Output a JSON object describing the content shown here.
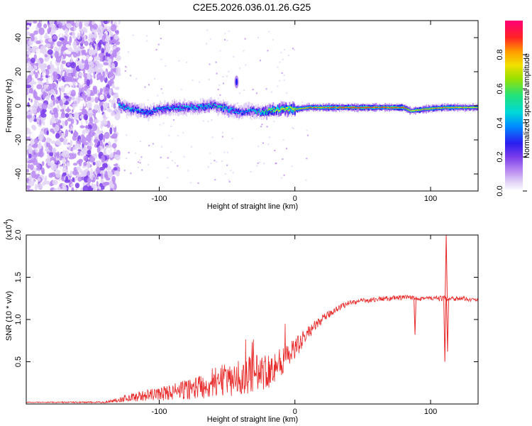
{
  "title": "C2E5.2026.036.01.26.G25",
  "colors": {
    "snr_line": "#e82a2a",
    "axis": "#000000",
    "colormap": [
      "#ffffff",
      "#d8c8f2",
      "#9a5cf0",
      "#6a1ee6",
      "#1f2bff",
      "#00c8e0",
      "#22e27a",
      "#d8e000",
      "#ff9a00",
      "#ff2424",
      "#ff0077"
    ]
  },
  "chart_data": [
    {
      "type": "heatmap",
      "xlabel": "Height of straight line (km)",
      "ylabel": "Frequency (Hz)",
      "xlim": [
        -198,
        135
      ],
      "ylim": [
        -50,
        50
      ],
      "xticks": [
        -100,
        0,
        100
      ],
      "xtick_labels": [
        "-100",
        "0",
        "100"
      ],
      "yticks": [
        -40,
        -20,
        0,
        20,
        40
      ],
      "ytick_labels": [
        "-40",
        "-20",
        "0",
        "20",
        "40"
      ],
      "colorbar": {
        "label": "Normalized spectral amplitude",
        "range": [
          0,
          1
        ],
        "ticks": [
          0.0,
          0.2,
          0.4,
          0.6,
          0.8
        ],
        "tick_labels": [
          "0.0",
          "0.2",
          "0.4",
          "0.6",
          "0.8"
        ]
      },
      "noise_region_x": [
        -198,
        -130
      ],
      "signal_track": {
        "x": [
          -130,
          -120,
          -110,
          -100,
          -90,
          -80,
          -70,
          -60,
          -50,
          -45,
          -40,
          -35,
          -30,
          -25,
          -20,
          -10,
          0,
          10,
          20,
          40,
          60,
          80,
          85,
          95,
          110,
          120,
          135
        ],
        "freq_hz": [
          0,
          -2,
          -4,
          -2,
          -1,
          -1,
          -0.5,
          0,
          -2,
          -3,
          -4,
          -3,
          -3,
          -4,
          -3,
          -2,
          -2,
          -1,
          -1,
          -1,
          -1,
          -1,
          -3,
          -2,
          -1,
          -1,
          -1
        ],
        "amplitude": [
          0.55,
          0.5,
          0.45,
          0.5,
          0.5,
          0.55,
          0.55,
          0.55,
          0.6,
          0.5,
          0.45,
          0.5,
          0.55,
          0.6,
          0.7,
          0.8,
          0.85,
          0.9,
          0.9,
          0.95,
          0.95,
          0.95,
          0.8,
          0.9,
          0.9,
          0.85,
          0.8
        ]
      },
      "artifact": {
        "x": -43,
        "freq_hz": 14,
        "amplitude": 0.35
      }
    },
    {
      "type": "line",
      "xlabel": "Height of straight line (km)",
      "ylabel": "SNR (10 * v/v)",
      "y_scale_label": "(x10",
      "y_scale_exponent": "4",
      "xlim": [
        -198,
        135
      ],
      "ylim": [
        0,
        2.0
      ],
      "xticks": [
        -100,
        0,
        100
      ],
      "xtick_labels": [
        "-100",
        "0",
        "100"
      ],
      "yticks": [
        0.5,
        1.0,
        1.5,
        2.0
      ],
      "ytick_labels": [
        "0.5",
        "1.0",
        "1.5",
        "2.0"
      ],
      "envelope": {
        "x": [
          -198,
          -140,
          -120,
          -100,
          -80,
          -60,
          -40,
          -20,
          -10,
          0,
          10,
          20,
          30,
          40,
          60,
          80,
          100,
          120,
          135
        ],
        "y": [
          0.02,
          0.02,
          0.08,
          0.12,
          0.17,
          0.25,
          0.32,
          0.4,
          0.5,
          0.65,
          0.85,
          1.0,
          1.12,
          1.2,
          1.24,
          1.26,
          1.25,
          1.25,
          1.23
        ],
        "spread": [
          0.005,
          0.01,
          0.05,
          0.08,
          0.12,
          0.18,
          0.22,
          0.22,
          0.18,
          0.12,
          0.08,
          0.05,
          0.04,
          0.03,
          0.03,
          0.03,
          0.03,
          0.03,
          0.02
        ]
      },
      "spikes": [
        {
          "x": 88.5,
          "y": 0.82
        },
        {
          "x": 110.5,
          "y": 0.5
        },
        {
          "x": 111.5,
          "y": 2.0
        },
        {
          "x": 112.5,
          "y": 0.62
        }
      ]
    }
  ]
}
